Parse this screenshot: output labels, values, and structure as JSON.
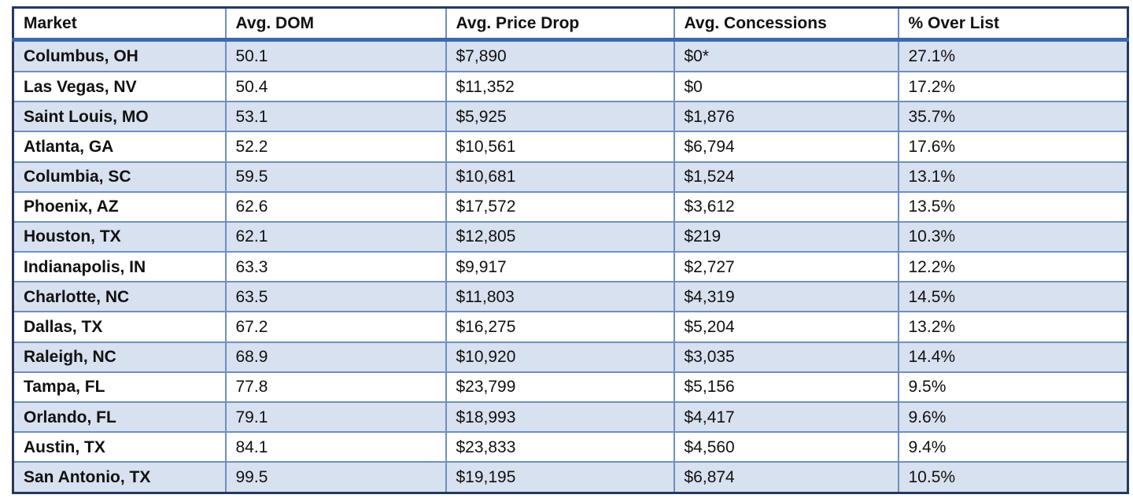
{
  "chart_data": {
    "type": "table",
    "columns": [
      "Market",
      "Avg. DOM",
      "Avg. Price Drop",
      "Avg. Concessions",
      "% Over List"
    ],
    "rows": [
      [
        "Columbus, OH",
        "50.1",
        "$7,890",
        "$0*",
        "27.1%"
      ],
      [
        "Las Vegas, NV",
        "50.4",
        "$11,352",
        "$0",
        "17.2%"
      ],
      [
        "Saint Louis, MO",
        "53.1",
        "$5,925",
        "$1,876",
        "35.7%"
      ],
      [
        "Atlanta, GA",
        "52.2",
        "$10,561",
        "$6,794",
        "17.6%"
      ],
      [
        "Columbia, SC",
        "59.5",
        "$10,681",
        "$1,524",
        "13.1%"
      ],
      [
        "Phoenix, AZ",
        "62.6",
        "$17,572",
        "$3,612",
        "13.5%"
      ],
      [
        "Houston, TX",
        "62.1",
        "$12,805",
        "$219",
        "10.3%"
      ],
      [
        "Indianapolis, IN",
        "63.3",
        "$9,917",
        "$2,727",
        "12.2%"
      ],
      [
        "Charlotte, NC",
        "63.5",
        "$11,803",
        "$4,319",
        "14.5%"
      ],
      [
        "Dallas, TX",
        "67.2",
        "$16,275",
        "$5,204",
        "13.2%"
      ],
      [
        "Raleigh, NC",
        "68.9",
        "$10,920",
        "$3,035",
        "14.4%"
      ],
      [
        "Tampa, FL",
        "77.8",
        "$23,799",
        "$5,156",
        "9.5%"
      ],
      [
        "Orlando, FL",
        "79.1",
        "$18,993",
        "$4,417",
        "9.6%"
      ],
      [
        "Austin, TX",
        "84.1",
        "$23,833",
        "$4,560",
        "9.4%"
      ],
      [
        "San Antonio, TX",
        "99.5",
        "$19,195",
        "$6,874",
        "10.5%"
      ]
    ],
    "layout_hints": {
      "row_striping": "odd data rows shaded light blue, even rows white",
      "first_column_bold": true,
      "header_bold": true
    }
  },
  "colors": {
    "outer_border": "#24395e",
    "grid_line": "#6d8fc3",
    "header_rule": "#3a6ab0",
    "row_alt_bg": "#d8e1ef",
    "row_bg": "#ffffff",
    "text": "#111111"
  }
}
